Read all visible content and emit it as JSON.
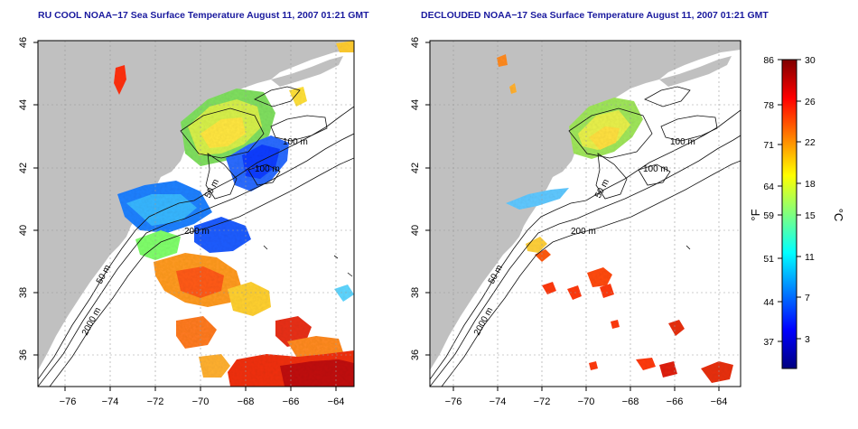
{
  "panels": [
    {
      "title": "RU COOL NOAA−17 Sea Surface Temperature August 11, 2007 01:21 GMT"
    },
    {
      "title": "DECLOUDED NOAA−17 Sea Surface Temperature August 11, 2007 01:21 GMT"
    }
  ],
  "map_axes": {
    "lon_ticks": [
      "−76",
      "−74",
      "−72",
      "−70",
      "−68",
      "−66",
      "−64"
    ],
    "lat_ticks": [
      "36",
      "38",
      "40",
      "42",
      "44",
      "46"
    ],
    "lon_range": [
      -77,
      -63
    ],
    "lat_range": [
      35,
      46
    ]
  },
  "isobath_labels": [
    "100 m",
    "100 m",
    "50 m",
    "200 m",
    "50 m",
    "2000 m"
  ],
  "colorbar": {
    "f_ticks": [
      "86",
      "78",
      "71",
      "64",
      "59",
      "51",
      "44",
      "37"
    ],
    "c_ticks": [
      "30",
      "26",
      "22",
      "18",
      "15",
      "11",
      "7",
      "3"
    ],
    "f_unit": "°F",
    "c_unit": "°C",
    "colors": [
      "#00007f",
      "#0000ff",
      "#007fff",
      "#00ffff",
      "#7fff7f",
      "#ffff00",
      "#ff7f00",
      "#ff0000",
      "#7f0000"
    ]
  },
  "colors": {
    "land": "#c0c0c0",
    "frame": "#000000",
    "title": "#1a1a9e",
    "grid": "#9a9a9a"
  }
}
